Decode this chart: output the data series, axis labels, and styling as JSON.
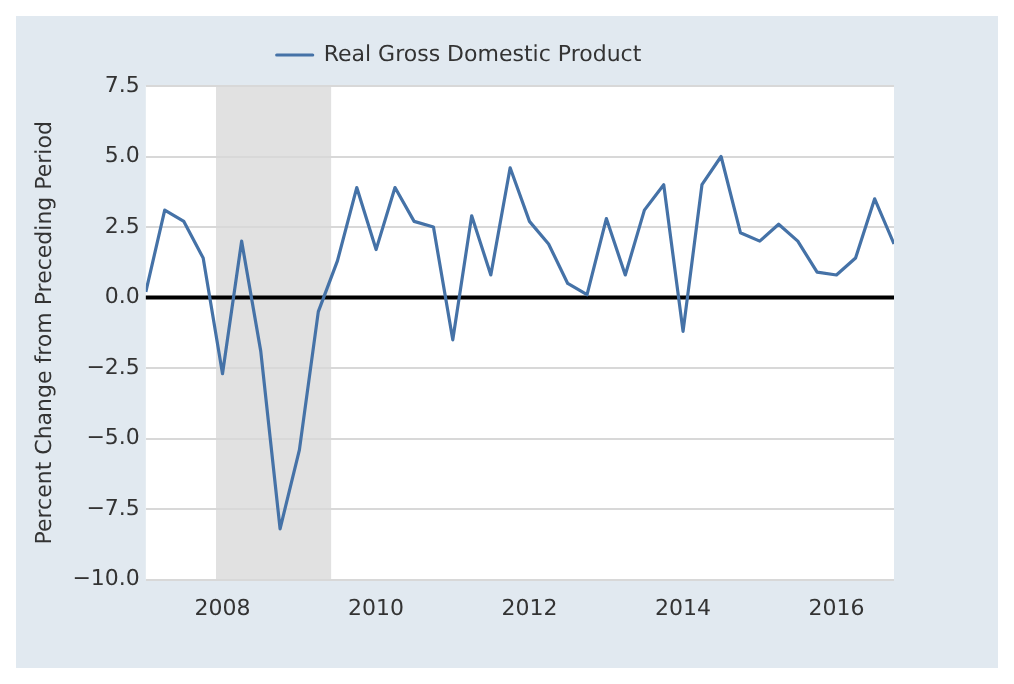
{
  "chart_data": {
    "type": "line",
    "ylabel": "Percent Change from Preceding Period",
    "x": [
      "2007-01-01",
      "2007-04-01",
      "2007-07-01",
      "2007-10-01",
      "2008-01-01",
      "2008-04-01",
      "2008-07-01",
      "2008-10-01",
      "2009-01-01",
      "2009-04-01",
      "2009-07-01",
      "2009-10-01",
      "2010-01-01",
      "2010-04-01",
      "2010-07-01",
      "2010-10-01",
      "2011-01-01",
      "2011-04-01",
      "2011-07-01",
      "2011-10-01",
      "2012-01-01",
      "2012-04-01",
      "2012-07-01",
      "2012-10-01",
      "2013-01-01",
      "2013-04-01",
      "2013-07-01",
      "2013-10-01",
      "2014-01-01",
      "2014-04-01",
      "2014-07-01",
      "2014-10-01",
      "2015-01-01",
      "2015-04-01",
      "2015-07-01",
      "2015-10-01",
      "2016-01-01",
      "2016-04-01",
      "2016-07-01",
      "2016-10-01"
    ],
    "series": [
      {
        "name": "Real Gross Domestic Product",
        "color": "#4572a7",
        "values": [
          0.2,
          3.1,
          2.7,
          1.4,
          -2.7,
          2.0,
          -1.9,
          -8.2,
          -5.4,
          -0.5,
          1.3,
          3.9,
          1.7,
          3.9,
          2.7,
          2.5,
          -1.5,
          2.9,
          0.8,
          4.6,
          2.7,
          1.9,
          0.5,
          0.1,
          2.8,
          0.8,
          3.1,
          4.0,
          -1.2,
          4.0,
          5.0,
          2.3,
          2.0,
          2.6,
          2.0,
          0.9,
          0.8,
          1.4,
          3.5,
          1.9
        ]
      }
    ],
    "xlim": [
      "2007-01-01",
      "2016-10-01"
    ],
    "xticks": [
      "2008",
      "2010",
      "2012",
      "2014",
      "2016"
    ],
    "ylim": [
      -10,
      7.5
    ],
    "yticks": [
      {
        "value": -10,
        "label": "−10.0"
      },
      {
        "value": -7.5,
        "label": "−7.5"
      },
      {
        "value": -5,
        "label": "−5.0"
      },
      {
        "value": -2.5,
        "label": "−2.5"
      },
      {
        "value": 0,
        "label": "0.0"
      },
      {
        "value": 2.5,
        "label": "2.5"
      },
      {
        "value": 5,
        "label": "5.0"
      },
      {
        "value": 7.5,
        "label": "7.5"
      }
    ],
    "grid": "y",
    "legend": "top",
    "marker": "none",
    "line_style": "solid",
    "ref_lines": [
      {
        "axis": "y",
        "value": 0,
        "color": "#000000"
      }
    ],
    "bands": [
      {
        "axis": "x",
        "from": "2007-12-01",
        "to": "2009-06-01",
        "color": "#e1e1e1"
      }
    ]
  }
}
